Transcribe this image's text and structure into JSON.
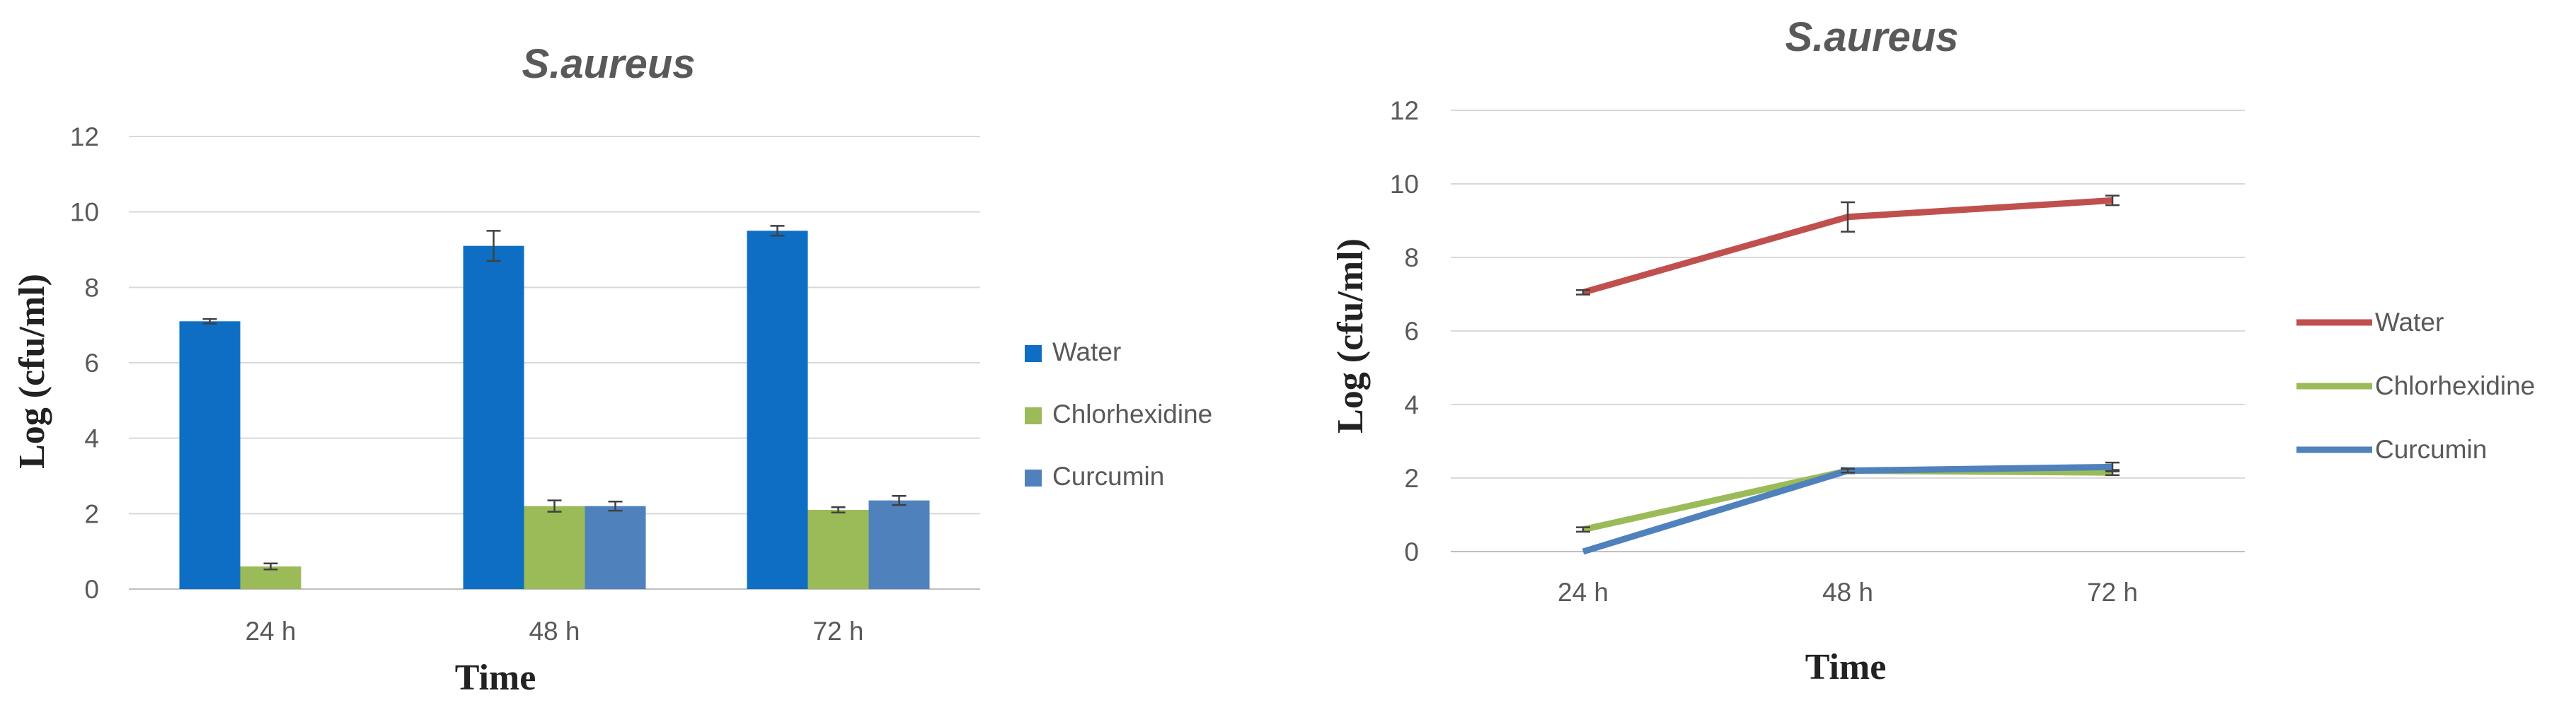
{
  "chart_data": [
    {
      "type": "bar",
      "title": "S.aureus",
      "xlabel": "Time",
      "ylabel": "Log (cfu/ml)",
      "categories": [
        "24 h",
        "48 h",
        "72 h"
      ],
      "ylim": [
        0,
        12
      ],
      "yticks": [
        "0",
        "2",
        "4",
        "6",
        "8",
        "10",
        "12"
      ],
      "grid": true,
      "legend_position": "right",
      "series": [
        {
          "name": "Water",
          "color": "#0e6ec3",
          "values": [
            7.1,
            9.1,
            9.5
          ],
          "errors": [
            0.06,
            0.4,
            0.13
          ]
        },
        {
          "name": "Chlorhexidine",
          "color": "#9bbb59",
          "values": [
            0.6,
            2.2,
            2.1
          ],
          "errors": [
            0.08,
            0.15,
            0.07
          ]
        },
        {
          "name": "Curcumin",
          "color": "#4f81bd",
          "values": [
            0,
            2.2,
            2.35
          ],
          "errors": [
            0,
            0.12,
            0.12
          ]
        }
      ]
    },
    {
      "type": "line",
      "title": "S.aureus",
      "xlabel": "Time",
      "ylabel": "Log (cfu/ml)",
      "categories": [
        "24 h",
        "48 h",
        "72 h"
      ],
      "ylim": [
        0,
        12
      ],
      "yticks": [
        "0",
        "2",
        "4",
        "6",
        "8",
        "10",
        "12"
      ],
      "grid": true,
      "legend_position": "right",
      "series": [
        {
          "name": "Water",
          "color": "#c0504d",
          "values": [
            7.05,
            9.1,
            9.55
          ],
          "errors": [
            0.06,
            0.4,
            0.13
          ]
        },
        {
          "name": "Chlorhexidine",
          "color": "#9bbb59",
          "values": [
            0.6,
            2.2,
            2.15
          ],
          "errors": [
            0.06,
            0.07,
            0.07
          ]
        },
        {
          "name": "Curcumin",
          "color": "#4f81bd",
          "values": [
            0,
            2.2,
            2.3
          ],
          "errors": [
            0,
            0.05,
            0.12
          ]
        }
      ]
    }
  ]
}
